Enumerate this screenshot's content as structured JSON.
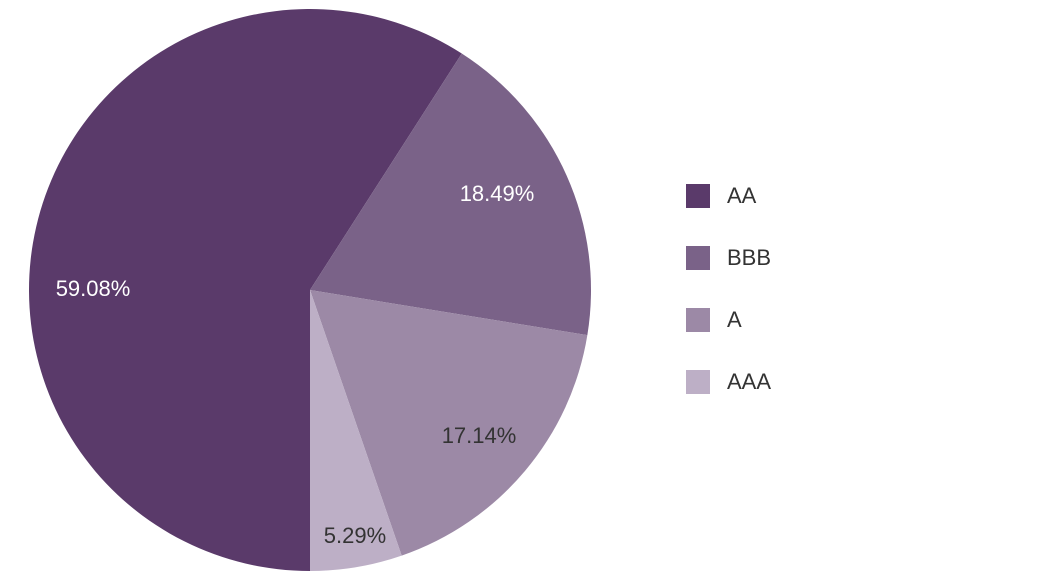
{
  "chart_data": {
    "type": "pie",
    "title": "",
    "categories": [
      "AA",
      "BBB",
      "A",
      "AAA"
    ],
    "values": [
      59.08,
      18.49,
      17.14,
      5.29
    ],
    "labels": [
      "59.08%",
      "18.49%",
      "17.14%",
      "5.29%"
    ],
    "colors": [
      "#5a3a6a",
      "#7a6288",
      "#9c89a6",
      "#bdafc6"
    ],
    "label_colors": [
      "#ffffff",
      "#ffffff",
      "#333333",
      "#333333"
    ],
    "start_angle": "bottom, clockwise",
    "legend_position": "right"
  },
  "legend": {
    "items": [
      {
        "label": "AA",
        "color": "#5a3a6a"
      },
      {
        "label": "BBB",
        "color": "#7a6288"
      },
      {
        "label": "A",
        "color": "#9c89a6"
      },
      {
        "label": "AAA",
        "color": "#bdafc6"
      }
    ]
  }
}
